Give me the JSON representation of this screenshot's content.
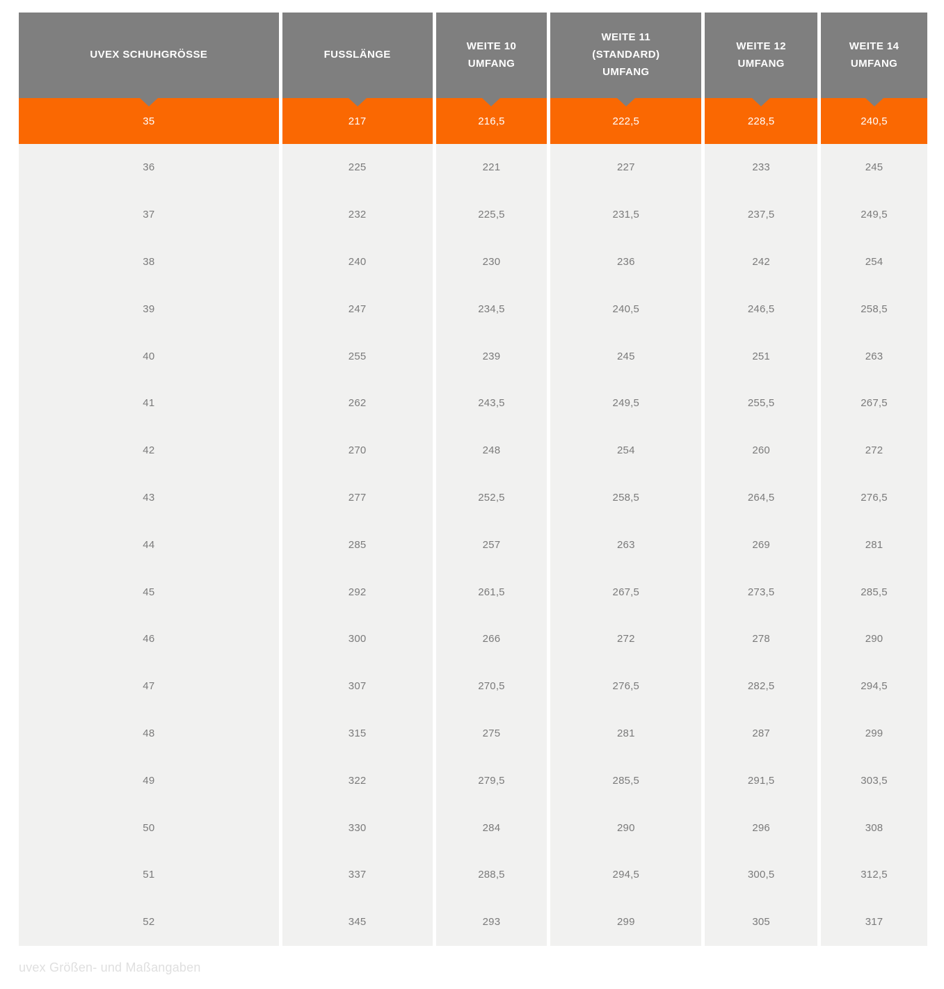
{
  "table": {
    "columns": [
      "UVEX SCHUHGRÖSSE",
      "FUSSLÄNGE",
      "WEITE 10\nUMFANG",
      "WEITE 11\n(STANDARD)\nUMFANG",
      "WEITE 12\nUMFANG",
      "WEITE 14\nUMFANG"
    ],
    "highlight_row": [
      "35",
      "217",
      "216,5",
      "222,5",
      "228,5",
      "240,5"
    ],
    "rows": [
      [
        "36",
        "225",
        "221",
        "227",
        "233",
        "245"
      ],
      [
        "37",
        "232",
        "225,5",
        "231,5",
        "237,5",
        "249,5"
      ],
      [
        "38",
        "240",
        "230",
        "236",
        "242",
        "254"
      ],
      [
        "39",
        "247",
        "234,5",
        "240,5",
        "246,5",
        "258,5"
      ],
      [
        "40",
        "255",
        "239",
        "245",
        "251",
        "263"
      ],
      [
        "41",
        "262",
        "243,5",
        "249,5",
        "255,5",
        "267,5"
      ],
      [
        "42",
        "270",
        "248",
        "254",
        "260",
        "272"
      ],
      [
        "43",
        "277",
        "252,5",
        "258,5",
        "264,5",
        "276,5"
      ],
      [
        "44",
        "285",
        "257",
        "263",
        "269",
        "281"
      ],
      [
        "45",
        "292",
        "261,5",
        "267,5",
        "273,5",
        "285,5"
      ],
      [
        "46",
        "300",
        "266",
        "272",
        "278",
        "290"
      ],
      [
        "47",
        "307",
        "270,5",
        "276,5",
        "282,5",
        "294,5"
      ],
      [
        "48",
        "315",
        "275",
        "281",
        "287",
        "299"
      ],
      [
        "49",
        "322",
        "279,5",
        "285,5",
        "291,5",
        "303,5"
      ],
      [
        "50",
        "330",
        "284",
        "290",
        "296",
        "308"
      ],
      [
        "51",
        "337",
        "288,5",
        "294,5",
        "300,5",
        "312,5"
      ],
      [
        "52",
        "345",
        "293",
        "299",
        "305",
        "317"
      ]
    ]
  },
  "caption": "uvex Größen- und Maßangaben",
  "colors": {
    "header_gray": "#7f7f7f",
    "highlight_orange": "#fa6802",
    "row_background": "#f1f1f0",
    "cell_text": "#7a7a7a",
    "header_text": "#ffffff",
    "caption_text": "#dfdfdf",
    "page_background": "#ffffff"
  }
}
